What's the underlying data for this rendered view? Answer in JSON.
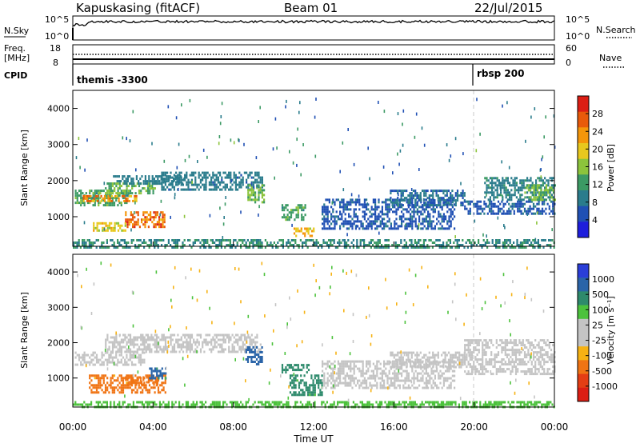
{
  "header": {
    "station": "Kapuskasing (fitACF)",
    "beam": "Beam 01",
    "date": "22/Jul/2015"
  },
  "panels": {
    "nsky": {
      "label": "N.Sky",
      "right_label": "N.Search",
      "yticks": [
        "10^5",
        "10^0"
      ]
    },
    "freq": {
      "label_lines": [
        "Freq.",
        "[MHz]"
      ],
      "yticks_left": [
        "18",
        "8"
      ],
      "yticks_right": [
        "60",
        "0"
      ],
      "right_label": "Nave"
    },
    "cpid": {
      "label": "CPID",
      "programs": [
        {
          "name": "themis -3300",
          "start_hour": 0
        },
        {
          "name": "rbsp 200",
          "start_hour": 20
        }
      ]
    }
  },
  "colors": {
    "power": [
      "#1e1edc",
      "#2050b4",
      "#2a7c8c",
      "#3c9a64",
      "#8cc43c",
      "#e8c81e",
      "#f4960a",
      "#e85a0a",
      "#dc1e14"
    ],
    "velocity": [
      "#2a3ed8",
      "#2a64a8",
      "#2e8a6c",
      "#4cc23c",
      "#c4c4c4",
      "#c4c4c4",
      "#f6b214",
      "#f07414",
      "#e43e14",
      "#dc1e14"
    ],
    "ground_scatter": "#b4b4b4"
  },
  "chart_data": [
    {
      "type": "heatmap",
      "panel": "power",
      "ylabel": "Slant Range [km]",
      "xlabel": "Time UT",
      "xticks": [
        "00:00",
        "04:00",
        "08:00",
        "12:00",
        "16:00",
        "20:00",
        "00:00"
      ],
      "xlim_hours": [
        0,
        24
      ],
      "ylim_km": [
        180,
        4500
      ],
      "yticks": [
        1000,
        2000,
        3000,
        4000
      ],
      "colorbar": {
        "label": "Power [dB]",
        "ticks": [
          "4",
          "8",
          "12",
          "16",
          "20",
          "24",
          "28"
        ],
        "range": [
          0,
          30
        ]
      },
      "regions": [
        {
          "t0": 0.1,
          "t1": 2.8,
          "r0": 1350,
          "r1": 1750,
          "value": 12
        },
        {
          "t0": 1.6,
          "t1": 4.2,
          "r0": 1650,
          "r1": 1950,
          "value": 14
        },
        {
          "t0": 2.0,
          "t1": 5.6,
          "r0": 1900,
          "r1": 2150,
          "value": 8
        },
        {
          "t0": 0.5,
          "t1": 3.2,
          "r0": 1450,
          "r1": 1600,
          "value": 22
        },
        {
          "t0": 2.6,
          "t1": 4.6,
          "r0": 700,
          "r1": 1150,
          "value": 24
        },
        {
          "t0": 1.0,
          "t1": 2.6,
          "r0": 600,
          "r1": 850,
          "value": 18
        },
        {
          "t0": 4.4,
          "t1": 9.4,
          "r0": 1750,
          "r1": 2250,
          "value": 8
        },
        {
          "t0": 8.7,
          "t1": 9.5,
          "r0": 1400,
          "r1": 1900,
          "value": 14
        },
        {
          "t0": 10.4,
          "t1": 11.6,
          "r0": 900,
          "r1": 1350,
          "value": 12
        },
        {
          "t0": 11.0,
          "t1": 12.0,
          "r0": 500,
          "r1": 700,
          "value": 20
        },
        {
          "t0": 12.4,
          "t1": 19.0,
          "r0": 700,
          "r1": 1500,
          "value": 6
        },
        {
          "t0": 15.8,
          "t1": 19.5,
          "r0": 1300,
          "r1": 1750,
          "value": 7
        },
        {
          "t0": 19.5,
          "t1": 24.0,
          "r0": 1100,
          "r1": 1450,
          "value": 6
        },
        {
          "t0": 20.5,
          "t1": 24.0,
          "r0": 1450,
          "r1": 2100,
          "value": 9
        },
        {
          "t0": 22.5,
          "t1": 24.0,
          "r0": 1500,
          "r1": 1900,
          "value": 14
        },
        {
          "t0": 0.0,
          "t1": 24.0,
          "r0": 180,
          "r1": 380,
          "value": 10
        }
      ]
    },
    {
      "type": "heatmap",
      "panel": "velocity",
      "ylabel": "Slant Range [km]",
      "xlabel": "Time UT",
      "xticks": [
        "00:00",
        "04:00",
        "08:00",
        "12:00",
        "16:00",
        "20:00",
        "00:00"
      ],
      "xlim_hours": [
        0,
        24
      ],
      "ylim_km": [
        180,
        4500
      ],
      "yticks": [
        1000,
        2000,
        3000,
        4000
      ],
      "colorbar": {
        "label": "Velocity [m s⁻¹]",
        "ticks": [
          "1000",
          "500",
          "100",
          "25",
          "-25",
          "-100",
          "-500",
          "-1000"
        ]
      },
      "regions": [
        {
          "t0": 0.1,
          "t1": 3.6,
          "r0": 1350,
          "r1": 1750,
          "value": 0
        },
        {
          "t0": 1.6,
          "t1": 9.4,
          "r0": 1750,
          "r1": 2250,
          "value": 0
        },
        {
          "t0": 0.8,
          "t1": 4.6,
          "r0": 600,
          "r1": 1100,
          "value": -120
        },
        {
          "t0": 2.6,
          "t1": 4.2,
          "r0": 800,
          "r1": 1050,
          "value": -300
        },
        {
          "t0": 3.8,
          "t1": 4.6,
          "r0": 1000,
          "r1": 1300,
          "value": 600
        },
        {
          "t0": 8.6,
          "t1": 9.4,
          "r0": 1400,
          "r1": 1900,
          "value": 700
        },
        {
          "t0": 10.4,
          "t1": 11.8,
          "r0": 1150,
          "r1": 1400,
          "value": 300
        },
        {
          "t0": 10.8,
          "t1": 12.4,
          "r0": 500,
          "r1": 1100,
          "value": 120
        },
        {
          "t0": 12.4,
          "t1": 19.0,
          "r0": 700,
          "r1": 1500,
          "value": 0
        },
        {
          "t0": 15.8,
          "t1": 19.5,
          "r0": 1300,
          "r1": 1750,
          "value": 0
        },
        {
          "t0": 19.5,
          "t1": 24.0,
          "r0": 1100,
          "r1": 2100,
          "value": 0
        },
        {
          "t0": 0.0,
          "t1": 24.0,
          "r0": 180,
          "r1": 350,
          "value": 60
        }
      ]
    }
  ]
}
